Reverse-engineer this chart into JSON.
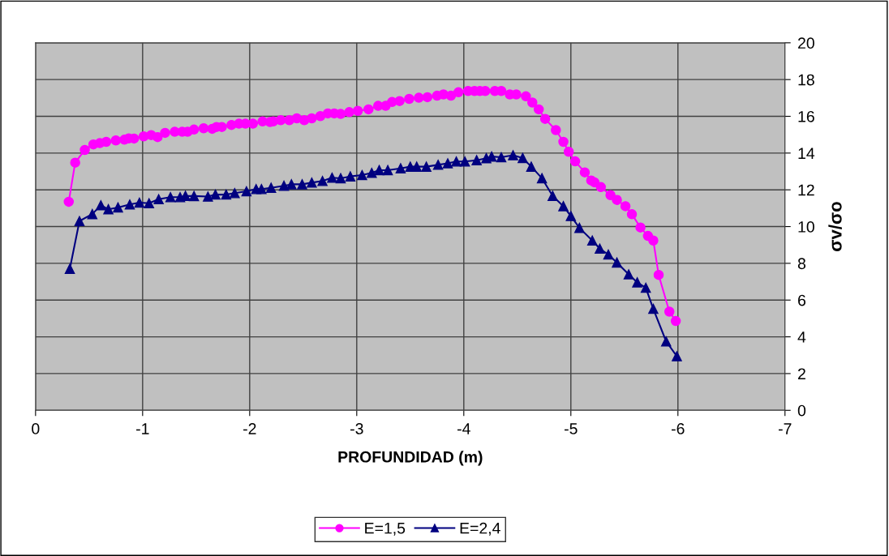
{
  "chart_data": {
    "type": "line",
    "xlabel": "PROFUNDIDAD (m)",
    "ylabel": "σv/σo",
    "xlim": [
      0,
      -7
    ],
    "xticks": [
      0,
      -1,
      -2,
      -3,
      -4,
      -5,
      -6,
      -7
    ],
    "ylim": [
      0,
      20
    ],
    "yticks": [
      0,
      2,
      4,
      6,
      8,
      10,
      12,
      14,
      16,
      18,
      20
    ],
    "grid": true,
    "legend": "bottom",
    "series": [
      {
        "name": "E=1,5",
        "color": "#ff00ff",
        "marker": "circle",
        "x": [
          -0.31,
          -0.37,
          -0.46,
          -0.54,
          -0.6,
          -0.66,
          -0.75,
          -0.83,
          -0.87,
          -0.92,
          -1.01,
          -1.08,
          -1.14,
          -1.21,
          -1.3,
          -1.37,
          -1.42,
          -1.48,
          -1.57,
          -1.65,
          -1.69,
          -1.74,
          -1.83,
          -1.9,
          -1.96,
          -2.03,
          -2.12,
          -2.19,
          -2.22,
          -2.29,
          -2.37,
          -2.44,
          -2.51,
          -2.58,
          -2.66,
          -2.73,
          -2.79,
          -2.85,
          -2.93,
          -3.01,
          -3.11,
          -3.2,
          -3.27,
          -3.33,
          -3.4,
          -3.49,
          -3.58,
          -3.66,
          -3.75,
          -3.81,
          -3.88,
          -3.95,
          -4.04,
          -4.1,
          -4.15,
          -4.2,
          -4.29,
          -4.35,
          -4.43,
          -4.49,
          -4.58,
          -4.64,
          -4.7,
          -4.76,
          -4.86,
          -4.93,
          -4.98,
          -5.04,
          -5.13,
          -5.19,
          -5.22,
          -5.28,
          -5.37,
          -5.43,
          -5.51,
          -5.57,
          -5.65,
          -5.72,
          -5.77,
          -5.82,
          -5.92,
          -5.98
        ],
        "values": [
          11.35,
          13.48,
          14.17,
          14.47,
          14.54,
          14.61,
          14.69,
          14.73,
          14.8,
          14.79,
          14.91,
          14.98,
          14.87,
          15.1,
          15.16,
          15.16,
          15.16,
          15.28,
          15.35,
          15.32,
          15.42,
          15.42,
          15.53,
          15.6,
          15.6,
          15.6,
          15.72,
          15.69,
          15.72,
          15.79,
          15.79,
          15.89,
          15.79,
          15.89,
          16.01,
          16.16,
          16.16,
          16.13,
          16.23,
          16.3,
          16.38,
          16.57,
          16.57,
          16.78,
          16.83,
          16.95,
          17.01,
          17.04,
          17.12,
          17.19,
          17.12,
          17.31,
          17.38,
          17.38,
          17.38,
          17.38,
          17.38,
          17.38,
          17.19,
          17.19,
          17.09,
          16.75,
          16.38,
          15.86,
          15.25,
          14.61,
          14.07,
          13.55,
          12.95,
          12.51,
          12.41,
          12.15,
          11.71,
          11.45,
          11.11,
          10.67,
          9.95,
          9.49,
          9.24,
          7.37,
          5.37,
          4.86
        ]
      },
      {
        "name": "E=2,4",
        "color": "#000080",
        "marker": "triangle",
        "x": [
          -0.32,
          -0.41,
          -0.53,
          -0.61,
          -0.68,
          -0.77,
          -0.88,
          -0.97,
          -1.06,
          -1.15,
          -1.26,
          -1.35,
          -1.4,
          -1.48,
          -1.61,
          -1.68,
          -1.78,
          -1.86,
          -1.97,
          -2.06,
          -2.11,
          -2.2,
          -2.32,
          -2.39,
          -2.49,
          -2.58,
          -2.68,
          -2.77,
          -2.85,
          -2.94,
          -3.05,
          -3.14,
          -3.21,
          -3.29,
          -3.41,
          -3.5,
          -3.56,
          -3.65,
          -3.76,
          -3.85,
          -3.93,
          -4.01,
          -4.12,
          -4.21,
          -4.26,
          -4.35,
          -4.46,
          -4.55,
          -4.63,
          -4.73,
          -4.83,
          -4.93,
          -5.0,
          -5.08,
          -5.2,
          -5.27,
          -5.35,
          -5.43,
          -5.54,
          -5.62,
          -5.7,
          -5.77,
          -5.89,
          -5.99
        ],
        "values": [
          7.7,
          10.3,
          10.68,
          11.16,
          10.94,
          11.04,
          11.2,
          11.3,
          11.27,
          11.49,
          11.6,
          11.6,
          11.67,
          11.66,
          11.63,
          11.74,
          11.74,
          11.82,
          11.92,
          12.04,
          12.04,
          12.11,
          12.22,
          12.3,
          12.3,
          12.39,
          12.48,
          12.66,
          12.63,
          12.73,
          12.8,
          12.92,
          13.07,
          13.07,
          13.17,
          13.26,
          13.26,
          13.26,
          13.36,
          13.44,
          13.54,
          13.54,
          13.61,
          13.72,
          13.81,
          13.77,
          13.88,
          13.73,
          13.26,
          12.63,
          11.67,
          11.11,
          10.57,
          9.93,
          9.24,
          8.8,
          8.48,
          8.04,
          7.4,
          6.96,
          6.67,
          5.52,
          3.75,
          2.94
        ]
      }
    ]
  }
}
